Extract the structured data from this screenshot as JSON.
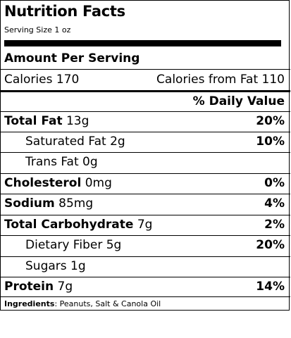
{
  "label": {
    "title": "Nutrition Facts",
    "serving_size": "Serving Size 1 oz",
    "amount_per_serving": "Amount Per Serving",
    "calories": "Calories 170",
    "calories_from_fat": "Calories from Fat 110",
    "daily_value_header": "% Daily Value",
    "nutrients": [
      {
        "name": "Total Fat",
        "amount": "13g",
        "dv": "20%"
      },
      {
        "name": "Saturated Fat",
        "amount": "2g",
        "dv": "10%"
      },
      {
        "name": "Trans Fat",
        "amount": "0g",
        "dv": ""
      },
      {
        "name": "Cholesterol",
        "amount": "0mg",
        "dv": "0%"
      },
      {
        "name": "Sodium",
        "amount": "85mg",
        "dv": "4%"
      },
      {
        "name": "Total Carbohydrate",
        "amount": "7g",
        "dv": "2%"
      },
      {
        "name": "Dietary Fiber",
        "amount": "5g",
        "dv": "20%"
      },
      {
        "name": "Sugars",
        "amount": "1g",
        "dv": ""
      },
      {
        "name": "Protein",
        "amount": "7g",
        "dv": "14%"
      }
    ],
    "ingredients_label": "Ingredients",
    "ingredients_text": ": Peanuts, Salt & Canola Oil"
  }
}
